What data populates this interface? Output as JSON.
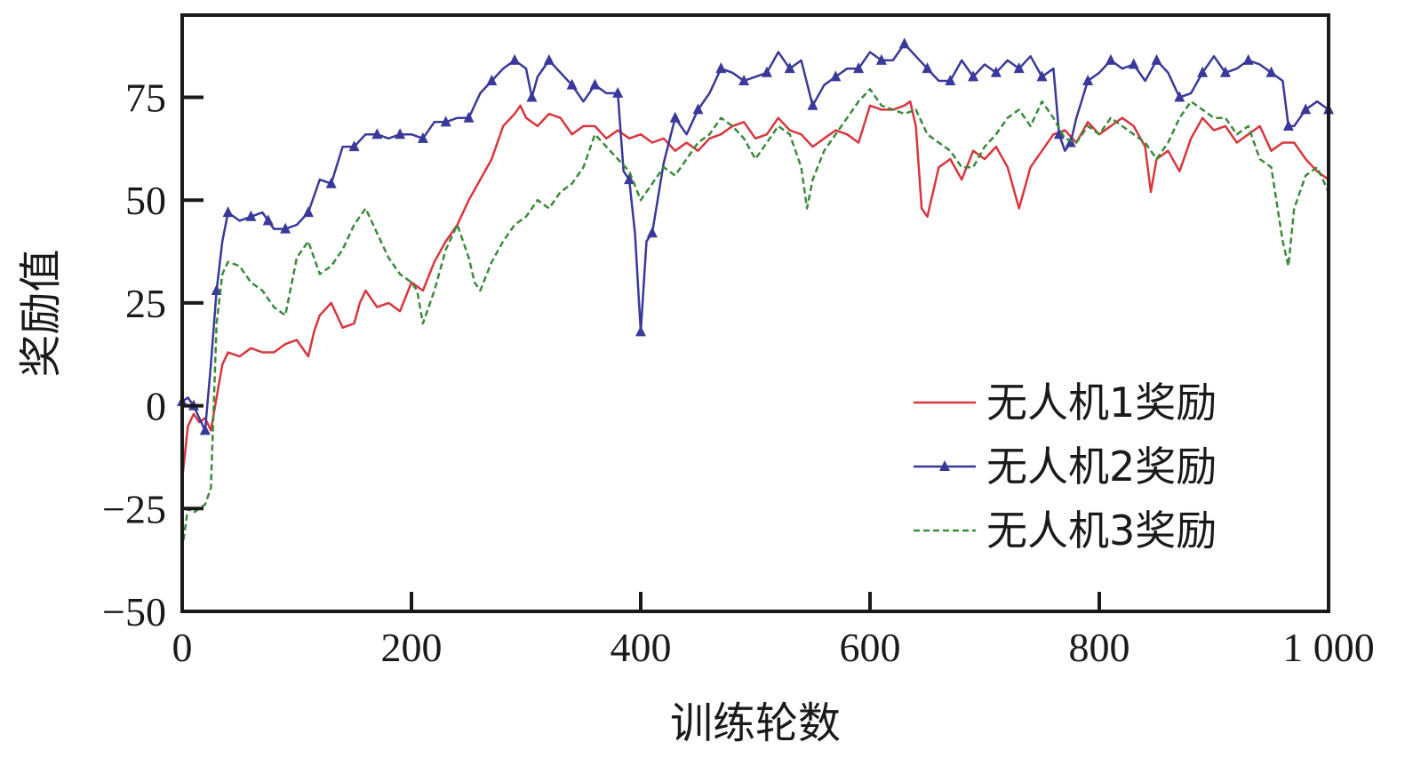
{
  "chart_data": {
    "type": "line",
    "title": "",
    "xlabel": "训练轮数",
    "ylabel": "奖励值",
    "xlim": [
      0,
      1000
    ],
    "ylim": [
      -50,
      95
    ],
    "x_ticks": [
      0,
      200,
      400,
      600,
      800,
      1000
    ],
    "x_tick_labels": [
      "0",
      "200",
      "400",
      "600",
      "800",
      "1 000"
    ],
    "y_ticks": [
      -50,
      -25,
      0,
      25,
      50,
      75
    ],
    "y_tick_labels": [
      "−50",
      "−25",
      "0",
      "25",
      "50",
      "75"
    ],
    "grid": false,
    "legend_position": "lower-right",
    "series": [
      {
        "name": "无人机1奖励",
        "color": "#d9363e",
        "style": "solid",
        "marker": "none",
        "x": [
          0,
          5,
          10,
          15,
          20,
          25,
          30,
          35,
          40,
          50,
          60,
          70,
          80,
          90,
          100,
          110,
          115,
          120,
          130,
          140,
          150,
          155,
          160,
          170,
          180,
          190,
          200,
          210,
          220,
          230,
          240,
          250,
          260,
          270,
          280,
          290,
          295,
          300,
          310,
          320,
          330,
          340,
          350,
          360,
          370,
          380,
          390,
          400,
          410,
          420,
          430,
          440,
          450,
          460,
          470,
          480,
          490,
          500,
          510,
          520,
          530,
          540,
          550,
          560,
          570,
          580,
          590,
          600,
          610,
          620,
          630,
          635,
          640,
          645,
          650,
          660,
          670,
          680,
          690,
          700,
          710,
          720,
          730,
          740,
          750,
          760,
          770,
          780,
          790,
          800,
          810,
          820,
          830,
          840,
          845,
          850,
          860,
          870,
          880,
          890,
          900,
          910,
          920,
          930,
          940,
          950,
          960,
          970,
          980,
          990,
          1000
        ],
        "y": [
          -18,
          -5,
          -2,
          -4,
          -3,
          -6,
          2,
          10,
          13,
          12,
          14,
          13,
          13,
          15,
          16,
          12,
          18,
          22,
          25,
          19,
          20,
          25,
          28,
          24,
          25,
          23,
          30,
          28,
          35,
          40,
          44,
          50,
          55,
          60,
          68,
          71,
          73,
          70,
          68,
          71,
          70,
          66,
          68,
          68,
          65,
          67,
          65,
          66,
          64,
          65,
          62,
          64,
          62,
          65,
          66,
          68,
          69,
          65,
          66,
          70,
          67,
          66,
          63,
          65,
          67,
          66,
          64,
          73,
          72,
          72,
          73,
          74,
          68,
          48,
          46,
          58,
          60,
          55,
          62,
          60,
          63,
          58,
          48,
          58,
          62,
          66,
          67,
          64,
          69,
          66,
          68,
          70,
          68,
          63,
          52,
          60,
          62,
          57,
          65,
          70,
          67,
          68,
          64,
          66,
          68,
          62,
          64,
          64,
          60,
          57,
          55
        ]
      },
      {
        "name": "无人机2奖励",
        "color": "#38399a",
        "style": "solid",
        "marker": "triangle",
        "x": [
          0,
          5,
          10,
          15,
          20,
          25,
          30,
          35,
          40,
          50,
          60,
          70,
          75,
          80,
          90,
          100,
          110,
          120,
          130,
          140,
          150,
          160,
          170,
          180,
          190,
          200,
          210,
          220,
          230,
          240,
          250,
          260,
          270,
          280,
          290,
          300,
          305,
          310,
          320,
          330,
          340,
          350,
          360,
          370,
          380,
          385,
          390,
          395,
          400,
          405,
          410,
          420,
          430,
          440,
          450,
          460,
          470,
          480,
          490,
          500,
          510,
          520,
          530,
          540,
          550,
          560,
          570,
          580,
          590,
          600,
          610,
          620,
          630,
          640,
          650,
          660,
          670,
          680,
          690,
          700,
          710,
          720,
          730,
          740,
          750,
          760,
          765,
          770,
          775,
          780,
          790,
          800,
          810,
          820,
          830,
          840,
          850,
          860,
          870,
          880,
          890,
          900,
          910,
          920,
          930,
          940,
          950,
          960,
          965,
          970,
          980,
          990,
          1000
        ],
        "y": [
          1,
          2,
          0,
          -3,
          -6,
          10,
          28,
          40,
          47,
          45,
          46,
          47,
          45,
          43,
          43,
          44,
          47,
          55,
          54,
          63,
          63,
          66,
          66,
          65,
          66,
          66,
          65,
          69,
          69,
          70,
          70,
          76,
          79,
          82,
          84,
          82,
          75,
          80,
          84,
          81,
          78,
          74,
          78,
          76,
          76,
          57,
          55,
          42,
          18,
          40,
          42,
          59,
          70,
          66,
          72,
          76,
          82,
          81,
          79,
          80,
          81,
          86,
          82,
          84,
          73,
          78,
          80,
          82,
          82,
          86,
          84,
          84,
          88,
          85,
          82,
          79,
          79,
          84,
          80,
          83,
          81,
          84,
          82,
          85,
          80,
          82,
          66,
          62,
          64,
          70,
          79,
          81,
          84,
          82,
          83,
          79,
          84,
          81,
          75,
          76,
          81,
          85,
          81,
          82,
          84,
          83,
          81,
          79,
          68,
          68,
          72,
          74,
          72
        ]
      },
      {
        "name": "无人机3奖励",
        "color": "#3a8a3a",
        "style": "dashed",
        "marker": "none",
        "x": [
          0,
          5,
          10,
          15,
          20,
          25,
          30,
          35,
          40,
          50,
          60,
          70,
          80,
          90,
          100,
          110,
          120,
          130,
          140,
          150,
          160,
          170,
          180,
          190,
          200,
          205,
          210,
          220,
          230,
          240,
          250,
          255,
          260,
          270,
          280,
          290,
          300,
          310,
          320,
          330,
          340,
          350,
          360,
          370,
          380,
          390,
          400,
          410,
          420,
          430,
          440,
          450,
          460,
          470,
          480,
          490,
          500,
          510,
          520,
          530,
          540,
          545,
          550,
          560,
          570,
          580,
          590,
          600,
          610,
          620,
          630,
          640,
          650,
          660,
          670,
          680,
          690,
          700,
          710,
          720,
          730,
          740,
          750,
          760,
          770,
          780,
          790,
          800,
          810,
          820,
          830,
          840,
          850,
          860,
          870,
          880,
          890,
          900,
          910,
          920,
          930,
          940,
          950,
          960,
          965,
          970,
          980,
          990,
          1000
        ],
        "y": [
          -35,
          -25,
          -26,
          -25,
          -24,
          -20,
          20,
          32,
          35,
          34,
          30,
          28,
          24,
          22,
          36,
          40,
          32,
          34,
          38,
          44,
          48,
          42,
          36,
          32,
          30,
          28,
          20,
          28,
          38,
          44,
          36,
          30,
          28,
          35,
          40,
          44,
          46,
          50,
          48,
          52,
          54,
          58,
          66,
          63,
          60,
          57,
          50,
          54,
          58,
          56,
          60,
          64,
          66,
          70,
          68,
          65,
          60,
          64,
          68,
          66,
          58,
          48,
          55,
          62,
          66,
          70,
          74,
          77,
          73,
          72,
          71,
          72,
          66,
          64,
          62,
          58,
          58,
          63,
          66,
          70,
          72,
          68,
          74,
          70,
          65,
          64,
          68,
          66,
          70,
          68,
          66,
          64,
          60,
          64,
          70,
          74,
          72,
          70,
          70,
          66,
          68,
          60,
          58,
          40,
          34,
          48,
          56,
          58,
          52
        ]
      }
    ]
  }
}
